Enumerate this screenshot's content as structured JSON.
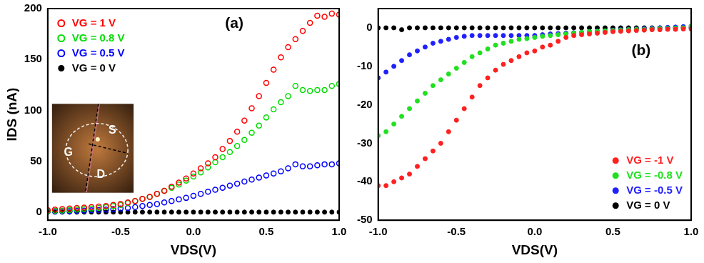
{
  "chart_data": [
    {
      "type": "scatter",
      "title": "(a)",
      "xlabel": "VDS(V)",
      "ylabel": "IDS (nA)",
      "annotations": [
        "G",
        "S",
        "D"
      ],
      "xlim": [
        -1,
        1
      ],
      "xticks": [
        {
          "value": -1,
          "label": "-1.0"
        },
        -0.5,
        {
          "value": 0,
          "label": "0.0"
        },
        0.5,
        {
          "value": 1,
          "label": "1.0"
        }
      ],
      "ylim": [
        -8,
        200
      ],
      "yticks": [
        0,
        50,
        100,
        150,
        200
      ],
      "grid": false,
      "legend": "upper left",
      "marker": "open_circle",
      "x": [
        -1,
        -0.95,
        -0.9,
        -0.85,
        -0.8,
        -0.75,
        -0.7,
        -0.65,
        -0.6,
        -0.55,
        -0.5,
        -0.45,
        -0.4,
        -0.35,
        -0.3,
        -0.25,
        -0.2,
        -0.15,
        -0.1,
        -0.05,
        0,
        0.05,
        0.1,
        0.15,
        0.2,
        0.25,
        0.3,
        0.35,
        0.4,
        0.45,
        0.5,
        0.55,
        0.6,
        0.65,
        0.7,
        0.75,
        0.8,
        0.85,
        0.9,
        0.95,
        1
      ],
      "series": [
        {
          "name": "VG = 1 V",
          "color": "#ff0000",
          "marker": "open_circle",
          "values": [
            2,
            2.5,
            3,
            3.5,
            4,
            4.5,
            5,
            5.5,
            6,
            7,
            8,
            9.5,
            11,
            13,
            15,
            18,
            21,
            25,
            29,
            33,
            38,
            43,
            48,
            54,
            62,
            70,
            79,
            90,
            102,
            114,
            127,
            140,
            152,
            162,
            170,
            178,
            186,
            193,
            192,
            195,
            194
          ]
        },
        {
          "name": "VG = 0.8 V",
          "color": "#00dd00",
          "marker": "open_circle",
          "values": [
            1,
            1.2,
            1.5,
            2,
            2.5,
            3,
            3.5,
            4,
            5,
            6,
            7,
            9,
            11,
            13,
            15,
            18,
            21,
            24,
            27,
            31,
            35,
            39,
            44,
            49,
            54,
            59,
            65,
            71,
            78,
            85,
            93,
            101,
            108,
            114,
            124,
            120,
            119,
            120,
            120,
            124,
            126
          ]
        },
        {
          "name": "VG = 0.5 V",
          "color": "#0000ff",
          "marker": "open_circle",
          "values": [
            0.5,
            0.6,
            0.8,
            1,
            1.2,
            1.5,
            1.8,
            2,
            2.5,
            3,
            3.5,
            4,
            5,
            6,
            7,
            8,
            9.5,
            11,
            12.5,
            14,
            16,
            18,
            20,
            22,
            24,
            26,
            28,
            30,
            32,
            34,
            36,
            38,
            40,
            43,
            47,
            45,
            45,
            46,
            47,
            47,
            48
          ]
        },
        {
          "name": "VG = 0 V",
          "color": "#000000",
          "marker": "circle",
          "values": [
            0,
            0,
            0,
            0,
            0,
            0,
            0,
            0,
            0,
            0,
            0,
            0,
            0,
            0,
            0,
            0,
            0,
            0,
            0,
            0,
            0,
            0,
            0,
            0,
            0,
            0,
            0,
            0,
            0,
            0,
            0,
            0,
            0,
            0,
            0,
            0,
            0,
            0,
            0,
            0,
            0
          ]
        }
      ]
    },
    {
      "type": "scatter",
      "title": "(b)",
      "xlabel": "VDS(V)",
      "xlim": [
        -1,
        1
      ],
      "xticks": [
        {
          "value": -1,
          "label": "-1.0"
        },
        -0.5,
        {
          "value": 0,
          "label": "0.0"
        },
        0.5,
        {
          "value": 1,
          "label": "1.0"
        }
      ],
      "ylim": [
        -50,
        5
      ],
      "yticks": [
        -50,
        -40,
        -30,
        -20,
        -10,
        0
      ],
      "grid": false,
      "legend": "lower right",
      "marker": "circle",
      "x": [
        -1,
        -0.95,
        -0.9,
        -0.85,
        -0.8,
        -0.75,
        -0.7,
        -0.65,
        -0.6,
        -0.55,
        -0.5,
        -0.45,
        -0.4,
        -0.35,
        -0.3,
        -0.25,
        -0.2,
        -0.15,
        -0.1,
        -0.05,
        0,
        0.05,
        0.1,
        0.15,
        0.2,
        0.25,
        0.3,
        0.35,
        0.4,
        0.45,
        0.5,
        0.55,
        0.6,
        0.65,
        0.7,
        0.75,
        0.8,
        0.85,
        0.9,
        0.95,
        1
      ],
      "series": [
        {
          "name": "VG = -1 V",
          "color": "#ff2020",
          "values": [
            -41,
            -41,
            -40,
            -39,
            -38,
            -36,
            -34,
            -32,
            -30,
            -27,
            -24,
            -21,
            -18,
            -15,
            -13,
            -11,
            -9.5,
            -8.5,
            -7.5,
            -6.5,
            -6,
            -5,
            -4.5,
            -3.5,
            -2.5,
            -2,
            -1.8,
            -1.6,
            -1.4,
            -1.2,
            -1,
            -0.9,
            -0.8,
            -0.7,
            -0.6,
            -0.5,
            -0.5,
            -0.4,
            -0.4,
            -0.3,
            -0.3
          ]
        },
        {
          "name": "VG = -0.8 V",
          "color": "#20e020",
          "values": [
            -28,
            -27,
            -25,
            -23,
            -21,
            -19,
            -17,
            -15,
            -13.5,
            -12,
            -10.5,
            -9,
            -7.5,
            -6.5,
            -5.5,
            -4.5,
            -4,
            -3.5,
            -3,
            -2.8,
            -2.5,
            -2.2,
            -2,
            -1.8,
            -1.6,
            -1.4,
            -1.2,
            -1,
            -0.9,
            -0.8,
            -0.7,
            -0.6,
            -0.5,
            -0.4,
            -0.4,
            -0.3,
            -0.2,
            -0.2,
            -0.1,
            0,
            0.5
          ]
        },
        {
          "name": "VG = -0.5 V",
          "color": "#2020ff",
          "values": [
            -13,
            -11.5,
            -10,
            -8.5,
            -7,
            -6,
            -5,
            -4,
            -3.5,
            -3,
            -2.5,
            -2.2,
            -2,
            -2,
            -2,
            -2,
            -2,
            -2,
            -2,
            -2,
            -2,
            -1.8,
            -1.6,
            -1.5,
            -1.4,
            -1.3,
            -1.2,
            -1,
            -0.9,
            -0.8,
            -0.6,
            -0.5,
            -0.4,
            -0.3,
            -0.2,
            -0.1,
            0,
            0.1,
            0.2,
            0.3,
            0.4
          ]
        },
        {
          "name": "VG = 0 V",
          "color": "#000000",
          "values": [
            0,
            0,
            0,
            -0.5,
            0,
            0,
            0,
            0,
            0,
            0,
            0,
            0,
            0,
            0,
            0,
            0,
            0,
            0,
            0,
            0,
            0,
            0,
            0,
            0,
            0,
            0,
            0,
            0,
            0,
            0,
            0,
            0,
            0,
            0,
            0,
            0,
            0,
            0,
            0,
            0,
            0
          ]
        }
      ]
    }
  ]
}
